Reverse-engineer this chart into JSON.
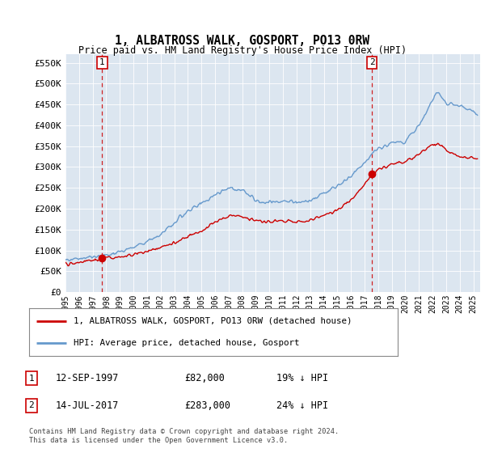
{
  "title": "1, ALBATROSS WALK, GOSPORT, PO13 0RW",
  "subtitle": "Price paid vs. HM Land Registry's House Price Index (HPI)",
  "ylabel_ticks": [
    "£0",
    "£50K",
    "£100K",
    "£150K",
    "£200K",
    "£250K",
    "£300K",
    "£350K",
    "£400K",
    "£450K",
    "£500K",
    "£550K"
  ],
  "ytick_values": [
    0,
    50000,
    100000,
    150000,
    200000,
    250000,
    300000,
    350000,
    400000,
    450000,
    500000,
    550000
  ],
  "ylim": [
    0,
    570000
  ],
  "xlim_start": 1995.0,
  "xlim_end": 2025.5,
  "bg_color": "#dce6f0",
  "sale1_x": 1997.7,
  "sale1_y": 82000,
  "sale1_label": "1",
  "sale1_date": "12-SEP-1997",
  "sale1_price": "£82,000",
  "sale1_hpi": "19% ↓ HPI",
  "sale2_x": 2017.54,
  "sale2_y": 283000,
  "sale2_label": "2",
  "sale2_date": "14-JUL-2017",
  "sale2_price": "£283,000",
  "sale2_hpi": "24% ↓ HPI",
  "hpi_color": "#6699cc",
  "price_color": "#cc0000",
  "vline_color": "#cc0000",
  "legend_label_price": "1, ALBATROSS WALK, GOSPORT, PO13 0RW (detached house)",
  "legend_label_hpi": "HPI: Average price, detached house, Gosport",
  "footer": "Contains HM Land Registry data © Crown copyright and database right 2024.\nThis data is licensed under the Open Government Licence v3.0.",
  "xtick_years": [
    1995,
    1996,
    1997,
    1998,
    1999,
    2000,
    2001,
    2002,
    2003,
    2004,
    2005,
    2006,
    2007,
    2008,
    2009,
    2010,
    2011,
    2012,
    2013,
    2014,
    2015,
    2016,
    2017,
    2018,
    2019,
    2020,
    2021,
    2022,
    2023,
    2024,
    2025
  ]
}
